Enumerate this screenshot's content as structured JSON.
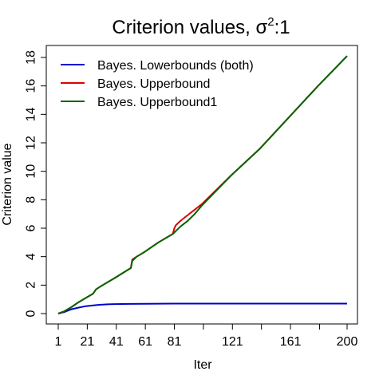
{
  "chart_data": {
    "type": "line",
    "title": "Criterion values, σ²:1",
    "title_main": "Criterion values, ",
    "title_sigma": "σ",
    "title_sup": "2",
    "title_tail": ":1",
    "xlabel": "Iter",
    "ylabel": "Criterion value",
    "xlim": [
      1,
      200
    ],
    "ylim": [
      0,
      18
    ],
    "x_ticks": [
      1,
      21,
      41,
      61,
      81,
      121,
      161,
      200
    ],
    "x_ticks_unlabeled": [
      101,
      141,
      181
    ],
    "y_ticks": [
      0,
      2,
      4,
      6,
      8,
      10,
      12,
      14,
      16,
      18
    ],
    "grid": false,
    "legend_position": "top-left",
    "series": [
      {
        "name": "Bayes. Lowerbounds (both)",
        "color": "#0000cc",
        "x": [
          1,
          5,
          10,
          15,
          20,
          25,
          30,
          35,
          40,
          50,
          60,
          80,
          100,
          120,
          140,
          160,
          180,
          200
        ],
        "y": [
          0,
          0.1,
          0.3,
          0.42,
          0.52,
          0.58,
          0.62,
          0.65,
          0.67,
          0.68,
          0.69,
          0.7,
          0.7,
          0.7,
          0.7,
          0.7,
          0.7,
          0.7
        ]
      },
      {
        "name": "Bayes. Upperbound",
        "color": "#dd0000",
        "x": [
          1,
          5,
          10,
          15,
          20,
          25,
          27,
          30,
          40,
          51,
          52,
          55,
          60,
          70,
          80,
          81,
          82,
          85,
          90,
          95,
          100,
          120,
          140,
          160,
          180,
          200
        ],
        "y": [
          0,
          0.15,
          0.45,
          0.8,
          1.1,
          1.4,
          1.7,
          1.9,
          2.5,
          3.2,
          3.8,
          4.0,
          4.3,
          5.0,
          5.6,
          6.0,
          6.2,
          6.5,
          6.9,
          7.3,
          7.7,
          9.7,
          11.6,
          13.8,
          16.0,
          18.1
        ]
      },
      {
        "name": "Bayes. Upperbound1",
        "color": "#006600",
        "x": [
          1,
          5,
          10,
          15,
          20,
          25,
          27,
          30,
          40,
          51,
          52,
          55,
          60,
          70,
          80,
          81,
          82,
          85,
          90,
          95,
          100,
          120,
          140,
          160,
          180,
          200
        ],
        "y": [
          0,
          0.15,
          0.45,
          0.8,
          1.1,
          1.4,
          1.7,
          1.9,
          2.5,
          3.2,
          3.7,
          4.0,
          4.3,
          5.0,
          5.6,
          5.7,
          5.8,
          6.1,
          6.5,
          7.0,
          7.6,
          9.7,
          11.6,
          13.8,
          16.0,
          18.1
        ]
      }
    ]
  }
}
